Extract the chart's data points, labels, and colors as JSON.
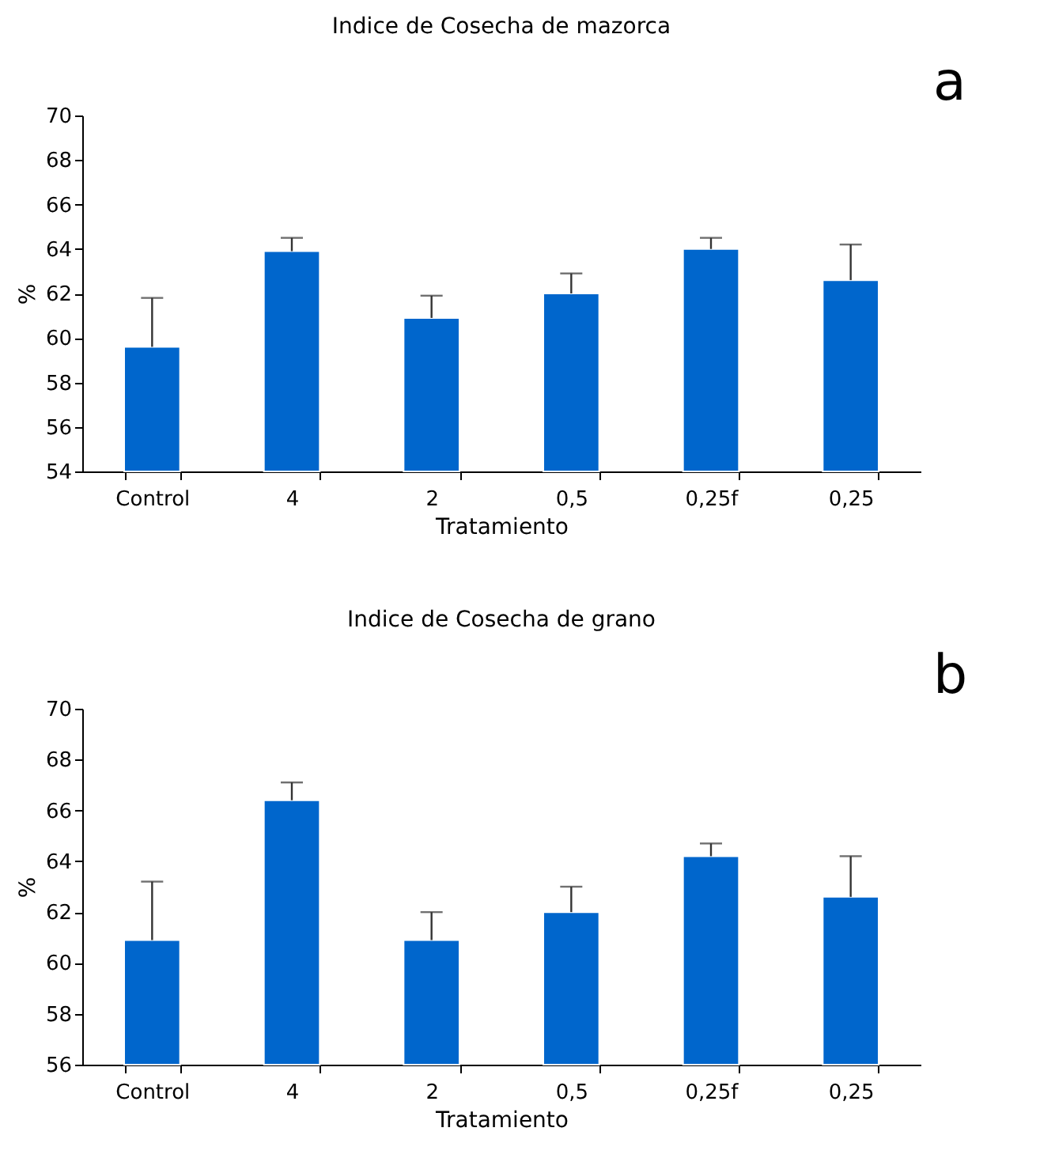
{
  "chart_data": [
    {
      "type": "bar",
      "title": "Indice de Cosecha de mazorca",
      "xlabel": "Tratamiento",
      "ylabel": "%",
      "annotations": [
        "a"
      ],
      "categories": [
        "Control",
        "4",
        "2",
        "0,5",
        "0,25f",
        "0,25"
      ],
      "values": [
        59.6,
        63.9,
        60.9,
        62.0,
        64.0,
        62.6
      ],
      "color": "#0066cc",
      "errors": [
        [
          59.6,
          61.8
        ],
        [
          63.9,
          64.5
        ],
        [
          60.9,
          61.9
        ],
        [
          62.0,
          62.9
        ],
        [
          64.0,
          64.5
        ],
        [
          62.6,
          64.2
        ]
      ],
      "ylim": [
        54,
        70
      ],
      "yticks": [
        54,
        56,
        58,
        60,
        62,
        64,
        66,
        68,
        70
      ],
      "grid": false
    },
    {
      "type": "bar",
      "title": "Indice de Cosecha de grano",
      "xlabel": "Tratamiento",
      "ylabel": "%",
      "annotations": [
        "b"
      ],
      "categories": [
        "Control",
        "4",
        "2",
        "0,5",
        "0,25f",
        "0,25"
      ],
      "values": [
        60.9,
        66.4,
        60.9,
        62.0,
        64.2,
        62.6
      ],
      "color": "#0066cc",
      "errors": [
        [
          60.9,
          63.2
        ],
        [
          66.4,
          67.1
        ],
        [
          60.9,
          62.0
        ],
        [
          62.0,
          63.0
        ],
        [
          64.2,
          64.7
        ],
        [
          62.6,
          64.2
        ]
      ],
      "ylim": [
        56,
        70
      ],
      "yticks": [
        56,
        58,
        60,
        62,
        64,
        66,
        68,
        70
      ],
      "grid": false
    }
  ]
}
